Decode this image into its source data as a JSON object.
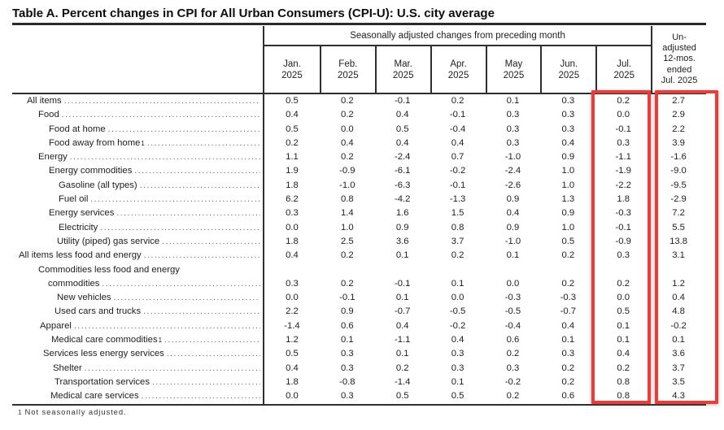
{
  "title": "Table A. Percent changes in CPI for All Urban Consumers (CPI-U): U.S. city average",
  "table": {
    "group_header": "Seasonally adjusted changes from preceding month",
    "months": [
      "Jan.\n2025",
      "Feb.\n2025",
      "Mar.\n2025",
      "Apr.\n2025",
      "May\n2025",
      "Jun.\n2025",
      "Jul.\n2025"
    ],
    "unadjusted_header": "Un-\nadjusted\n12-mos.\nended\nJul. 2025",
    "column_keys": [
      "jan-2025",
      "feb-2025",
      "mar-2025",
      "apr-2025",
      "may-2025",
      "jun-2025",
      "jul-2025",
      "12-mos-ended-jul-2025"
    ],
    "rows": [
      {
        "label": "All items",
        "sup": "",
        "indent": 18,
        "values": [
          "0.5",
          "0.2",
          "-0.1",
          "0.2",
          "0.1",
          "0.3",
          "0.2",
          "2.7"
        ]
      },
      {
        "label": "Food",
        "sup": "",
        "indent": 32,
        "values": [
          "0.4",
          "0.2",
          "0.4",
          "-0.1",
          "0.3",
          "0.3",
          "0.0",
          "2.9"
        ]
      },
      {
        "label": "Food at home",
        "sup": "",
        "indent": 45,
        "values": [
          "0.5",
          "0.0",
          "0.5",
          "-0.4",
          "0.3",
          "0.3",
          "-0.1",
          "2.2"
        ]
      },
      {
        "label": "Food away from home",
        "sup": "1",
        "indent": 45,
        "values": [
          "0.2",
          "0.4",
          "0.4",
          "0.4",
          "0.3",
          "0.4",
          "0.3",
          "3.9"
        ]
      },
      {
        "label": "Energy",
        "sup": "",
        "indent": 32,
        "values": [
          "1.1",
          "0.2",
          "-2.4",
          "0.7",
          "-1.0",
          "0.9",
          "-1.1",
          "-1.6"
        ]
      },
      {
        "label": "Energy commodities",
        "sup": "",
        "indent": 45,
        "values": [
          "1.9",
          "-0.9",
          "-6.1",
          "-0.2",
          "-2.4",
          "1.0",
          "-1.9",
          "-9.0"
        ]
      },
      {
        "label": "Gasoline (all types)",
        "sup": "",
        "indent": 57,
        "values": [
          "1.8",
          "-1.0",
          "-6.3",
          "-0.1",
          "-2.6",
          "1.0",
          "-2.2",
          "-9.5"
        ]
      },
      {
        "label": "Fuel oil",
        "sup": "",
        "indent": 57,
        "values": [
          "6.2",
          "0.8",
          "-4.2",
          "-1.3",
          "0.9",
          "1.3",
          "1.8",
          "-2.9"
        ]
      },
      {
        "label": "Energy services",
        "sup": "",
        "indent": 45,
        "values": [
          "0.3",
          "1.4",
          "1.6",
          "1.5",
          "0.4",
          "0.9",
          "-0.3",
          "7.2"
        ]
      },
      {
        "label": "Electricity",
        "sup": "",
        "indent": 57,
        "values": [
          "0.0",
          "1.0",
          "0.9",
          "0.8",
          "0.9",
          "1.0",
          "-0.1",
          "5.5"
        ]
      },
      {
        "label": "Utility (piped) gas service",
        "sup": "",
        "indent": 55,
        "values": [
          "1.8",
          "2.5",
          "3.6",
          "3.7",
          "-1.0",
          "0.5",
          "-0.9",
          "13.8"
        ]
      },
      {
        "label": "All items less food and energy",
        "sup": "",
        "indent": 8,
        "values": [
          "0.4",
          "0.2",
          "0.1",
          "0.2",
          "0.1",
          "0.2",
          "0.3",
          "3.1"
        ]
      },
      {
        "label": "Commodities less food and energy",
        "label2": "commodities",
        "sup": "",
        "indent": 32,
        "indent2": 44,
        "values": [
          "0.3",
          "0.2",
          "-0.1",
          "0.1",
          "0.0",
          "0.2",
          "0.2",
          "1.2"
        ]
      },
      {
        "label": "New vehicles",
        "sup": "",
        "indent": 55,
        "values": [
          "0.0",
          "-0.1",
          "0.1",
          "0.0",
          "-0.3",
          "-0.3",
          "0.0",
          "0.4"
        ]
      },
      {
        "label": "Used cars and trucks",
        "sup": "",
        "indent": 52,
        "values": [
          "2.2",
          "0.9",
          "-0.7",
          "-0.5",
          "-0.5",
          "-0.7",
          "0.5",
          "4.8"
        ]
      },
      {
        "label": "Apparel",
        "sup": "",
        "indent": 34,
        "values": [
          "-1.4",
          "0.6",
          "0.4",
          "-0.2",
          "-0.4",
          "0.4",
          "0.1",
          "-0.2"
        ]
      },
      {
        "label": "Medical care commodities",
        "sup": "1",
        "indent": 48,
        "values": [
          "1.2",
          "0.1",
          "-1.1",
          "0.4",
          "0.6",
          "0.1",
          "0.1",
          "0.1"
        ]
      },
      {
        "label": "Services less energy services",
        "sup": "",
        "indent": 38,
        "values": [
          "0.5",
          "0.3",
          "0.1",
          "0.3",
          "0.2",
          "0.3",
          "0.4",
          "3.6"
        ]
      },
      {
        "label": "Shelter",
        "sup": "",
        "indent": 50,
        "values": [
          "0.4",
          "0.3",
          "0.2",
          "0.3",
          "0.3",
          "0.2",
          "0.2",
          "3.7"
        ]
      },
      {
        "label": "Transportation services",
        "sup": "",
        "indent": 52,
        "values": [
          "1.8",
          "-0.8",
          "-1.4",
          "0.1",
          "-0.2",
          "0.2",
          "0.8",
          "3.5"
        ]
      },
      {
        "label": "Medical care services",
        "sup": "",
        "indent": 47,
        "values": [
          "0.0",
          "0.3",
          "0.5",
          "0.5",
          "0.2",
          "0.6",
          "0.8",
          "4.3"
        ]
      }
    ]
  },
  "highlight": {
    "color": "#ee3b37",
    "highlighted_columns": [
      "Jul. 2025",
      "Un-adjusted 12-mos. ended Jul. 2025"
    ]
  },
  "footnote": {
    "marker": "1",
    "text": "Not seasonally adjusted."
  }
}
